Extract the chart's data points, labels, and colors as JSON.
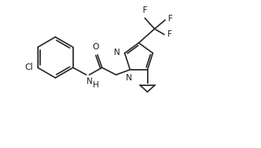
{
  "bg_color": "#ffffff",
  "line_color": "#2d2d2d",
  "line_width": 1.4,
  "font_size": 8.5,
  "font_color": "#1a1a1a",
  "xlim": [
    0,
    10
  ],
  "ylim": [
    0,
    5.8
  ]
}
